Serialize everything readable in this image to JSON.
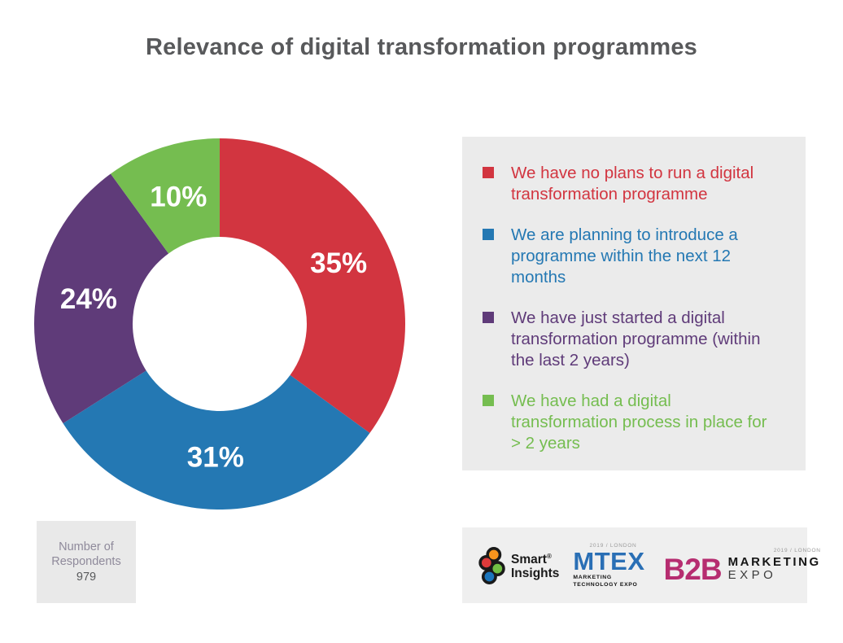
{
  "title": "Relevance of digital transformation programmes",
  "chart_data": {
    "type": "pie",
    "subtype": "donut",
    "title": "Relevance of digital transformation programmes",
    "value_suffix": "%",
    "start_angle_deg": 0,
    "direction": "clockwise",
    "inner_radius_ratio": 0.47,
    "legend_position": "right",
    "data_labels": "inside",
    "data_label_color": "#FFFFFF",
    "segments": [
      {
        "label": "We have no plans to run a digital transformation programme",
        "value": 35,
        "color": "#D23540"
      },
      {
        "label": "We are planning to introduce a programme within the next 12 months",
        "value": 31,
        "color": "#2478B3"
      },
      {
        "label": "We have just started a digital transformation programme (within the last 2 years)",
        "value": 24,
        "color": "#5F3B79"
      },
      {
        "label": "We have had a digital transformation process in place for > 2 years",
        "value": 10,
        "color": "#75BD50"
      }
    ],
    "annotation": {
      "label": "Number of Respondents",
      "value": "979"
    }
  },
  "respondents": {
    "label": "Number of Respondents",
    "value": "979"
  },
  "footer_logos": {
    "smart_insights": {
      "name_line1": "Smart",
      "registered_mark": "®",
      "name_line2": "Insights",
      "icon_colors": {
        "top": "#F7941D",
        "left": "#DD3A3A",
        "right": "#72BF44",
        "bottom": "#1B75BC",
        "outline": "#1A1A1A"
      }
    },
    "mtex": {
      "top_text": "2019 / LONDON",
      "title": "MTEX",
      "subtitle": "MARKETING TECHNOLOGY EXPO",
      "brand_color": "#2A6FB5"
    },
    "b2b": {
      "top_text": "2019 / LONDON",
      "title": "B2B",
      "line1": "MARKETING",
      "line2": "EXPO",
      "brand_color": "#B62D70"
    }
  },
  "colors": {
    "title_text": "#58595B",
    "legend_background": "#EBEBEB",
    "respondents_background": "#E9E9E9",
    "logo_strip_background": "#EFEFEF",
    "respondents_label_text": "#8F8A9B"
  }
}
